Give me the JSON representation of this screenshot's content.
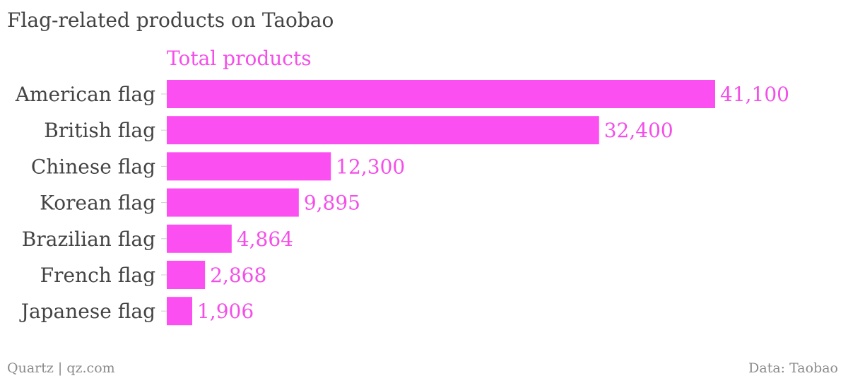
{
  "footer": {
    "credit": "Quartz | qz.com",
    "source": "Data: Taobao"
  },
  "colors": {
    "bar": "#fc4ff2",
    "series_label": "#f44ee8",
    "category_text": "#444444",
    "tick": "#cccccc",
    "footer_text": "#8a8a8a"
  },
  "chart_data": {
    "type": "bar",
    "orientation": "horizontal",
    "title": "Flag-related products on Taobao",
    "categories": [
      "American flag",
      "British flag",
      "Chinese flag",
      "Korean flag",
      "Brazilian flag",
      "French flag",
      "Japanese flag"
    ],
    "series": [
      {
        "name": "Total products",
        "values": [
          41100,
          32400,
          12300,
          9895,
          4864,
          2868,
          1906
        ],
        "labels": [
          "41,100",
          "32,400",
          "12,300",
          "9,895",
          "4,864",
          "2,868",
          "1,906"
        ]
      }
    ],
    "xlim": [
      0,
      41100
    ],
    "grid": false,
    "legend": "top"
  }
}
